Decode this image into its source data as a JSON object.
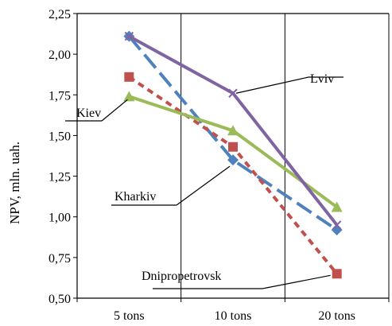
{
  "chart_data": {
    "type": "line",
    "ylabel": "NPV, mln. uah.",
    "xlabel": "",
    "categories": [
      "5 tons",
      "10 tons",
      "20 tons"
    ],
    "ylim": [
      0.5,
      2.25
    ],
    "yticks": [
      "0,50",
      "0,75",
      "1,00",
      "1,25",
      "1,50",
      "1,75",
      "2,00",
      "2,25"
    ],
    "grid": "vertical",
    "series": [
      {
        "name": "Kiev",
        "values": [
          1.74,
          1.53,
          1.06
        ],
        "color": "#9bbb59",
        "marker": "triangle",
        "dash": "solid"
      },
      {
        "name": "Lviv",
        "values": [
          2.11,
          1.76,
          0.95
        ],
        "color": "#8064a2",
        "marker": "x",
        "dash": "solid"
      },
      {
        "name": "Kharkiv",
        "values": [
          2.11,
          1.35,
          0.92
        ],
        "color": "#4f81bd",
        "marker": "diamond",
        "dash": "longdash"
      },
      {
        "name": "Dnipropetrovsk",
        "values": [
          1.86,
          1.43,
          0.65
        ],
        "color": "#c0504d",
        "marker": "square",
        "dash": "shortdash"
      }
    ]
  }
}
